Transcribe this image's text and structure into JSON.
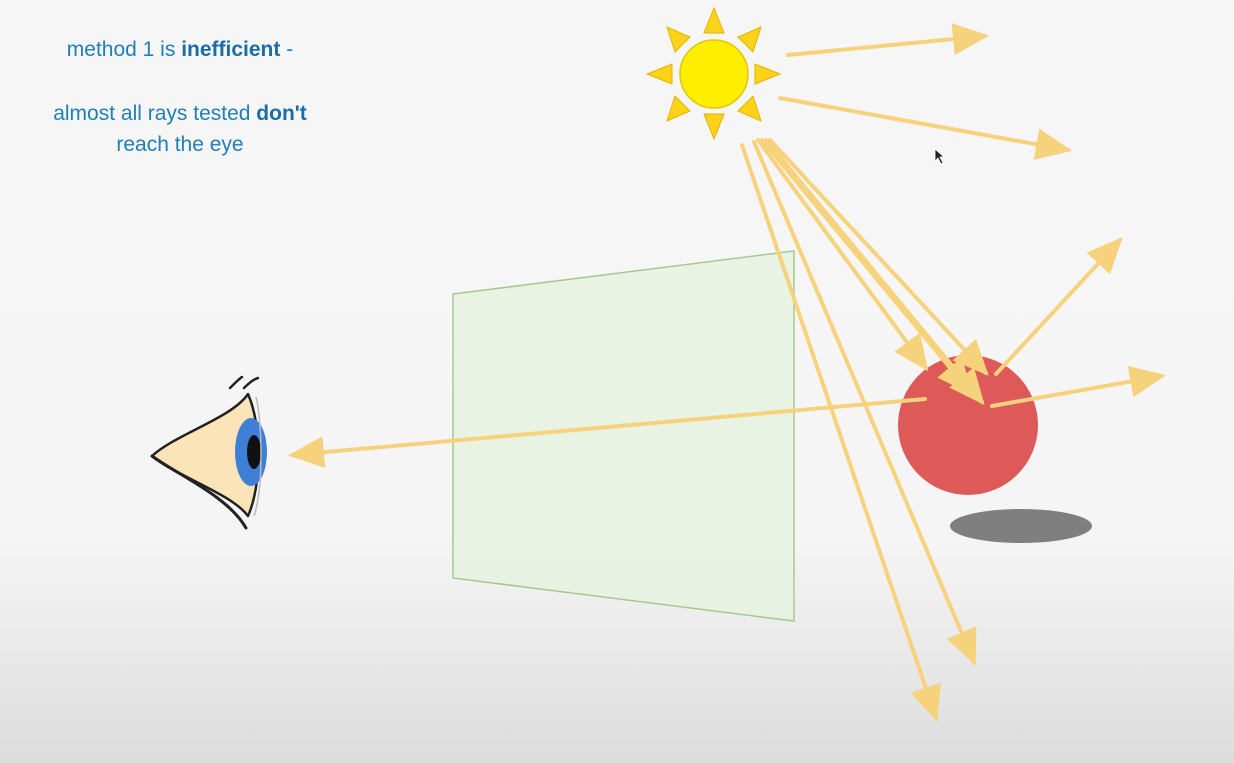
{
  "caption": {
    "line1_pre": "method 1 is ",
    "line1_bold": "inefficient",
    "line1_post": " -",
    "line2_pre": "almost all rays tested ",
    "line2_bold": "don't",
    "line2_post": "reach the eye"
  },
  "colors": {
    "caption_text": "#1f7fb8",
    "ray": "#f7d27d",
    "sun_fill": "#ffee00",
    "sun_rays": "#ffd21a",
    "sphere": "#dd5a58",
    "shadow": "#7f7f7f",
    "screen_fill": "#e6f2df",
    "screen_stroke": "#a7c98f",
    "eye_skin": "#fbe4b8",
    "iris": "#3f7fd6"
  },
  "icons": [
    "sun-icon",
    "eye-icon",
    "sphere-object",
    "image-plane",
    "mouse-cursor-icon"
  ]
}
